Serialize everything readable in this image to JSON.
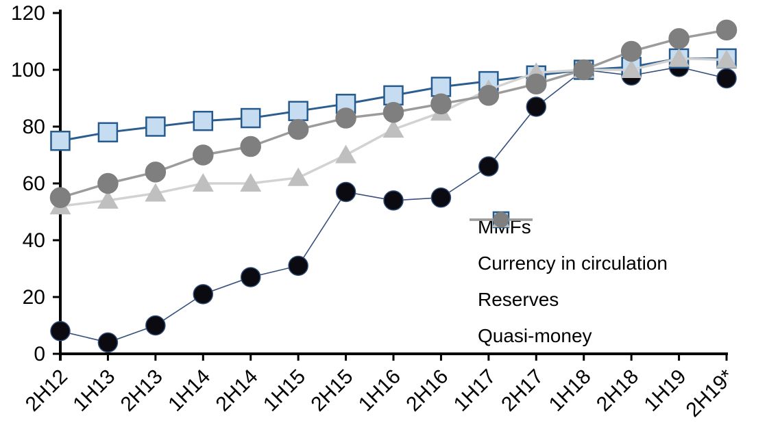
{
  "chart_data": {
    "type": "line",
    "title": "",
    "xlabel": "",
    "ylabel": "",
    "ylim": [
      0,
      120
    ],
    "yticks": [
      0,
      20,
      40,
      60,
      80,
      100,
      120
    ],
    "grid": false,
    "legend_position": "inside-right",
    "background": "#ffffff",
    "axis_color": "#000000",
    "categories": [
      "2H12",
      "1H13",
      "2H13",
      "1H14",
      "2H14",
      "1H15",
      "2H15",
      "1H16",
      "2H16",
      "1H17",
      "2H17",
      "1H18",
      "2H18",
      "1H19",
      "2H19*"
    ],
    "series": [
      {
        "name": "MMFs",
        "marker": "circle",
        "line_color": "#35507c",
        "line_width": 1.6,
        "marker_fill": "#0a0a10",
        "marker_stroke": "#2e4a76",
        "marker_size": 14,
        "values": [
          8,
          4,
          10,
          21,
          27,
          31,
          57,
          54,
          55,
          66,
          87,
          100,
          98,
          101,
          97
        ]
      },
      {
        "name": "Currency in circulation",
        "marker": "square",
        "line_color": "#2c5d8f",
        "line_width": 3,
        "marker_fill": "#c6ddf1",
        "marker_stroke": "#265a8c",
        "marker_size": 27,
        "values": [
          75,
          78,
          80,
          82,
          83,
          85.5,
          88,
          91,
          94,
          96,
          98,
          100,
          101,
          104,
          104
        ]
      },
      {
        "name": "Reserves",
        "marker": "triangle",
        "line_color": "#d2d2d2",
        "line_width": 3.5,
        "marker_fill": "#bfbfbf",
        "marker_stroke": "#bfbfbf",
        "marker_size": 31,
        "values": [
          52,
          54,
          56.5,
          60,
          60,
          62,
          70,
          79,
          85,
          93,
          99,
          100,
          100,
          104,
          103.5
        ]
      },
      {
        "name": "Quasi-money",
        "marker": "circle",
        "line_color": "#9b9b9b",
        "line_width": 3.5,
        "marker_fill": "#7f7f7f",
        "marker_stroke": "#7f7f7f",
        "marker_size": 14.5,
        "values": [
          55,
          60,
          64,
          70,
          73,
          79,
          83,
          85,
          88,
          91,
          95,
          100,
          106.5,
          111,
          114
        ]
      }
    ]
  }
}
